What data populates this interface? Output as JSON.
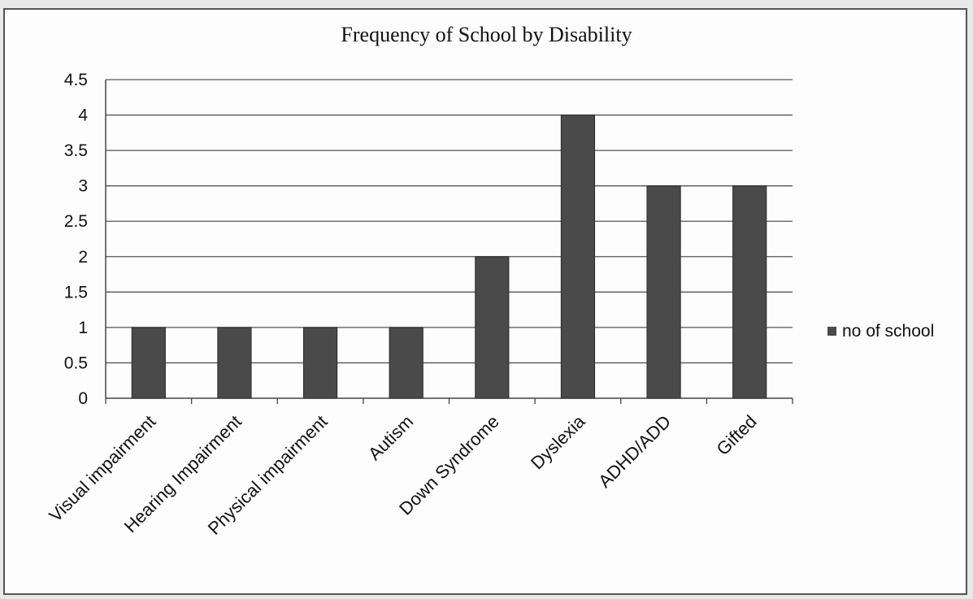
{
  "chart_data": {
    "type": "bar",
    "title": "Frequency  of School by Disability",
    "categories": [
      "Visual impairment",
      "Hearing Impairment",
      "Physical impairment",
      "Autism",
      "Down Syndrome",
      "Dyslexia",
      "ADHD/ADD",
      "Gifted"
    ],
    "series": [
      {
        "name": "no of school",
        "values": [
          1,
          1,
          1,
          1,
          2,
          4,
          3,
          3
        ]
      }
    ],
    "ylim": [
      0,
      4.5
    ],
    "yticks": [
      "0",
      "0.5",
      "1",
      "1.5",
      "2",
      "2.5",
      "3",
      "3.5",
      "4",
      "4.5"
    ],
    "grid": true,
    "legend_position": "right",
    "bar_color": "#4a4a4a"
  }
}
